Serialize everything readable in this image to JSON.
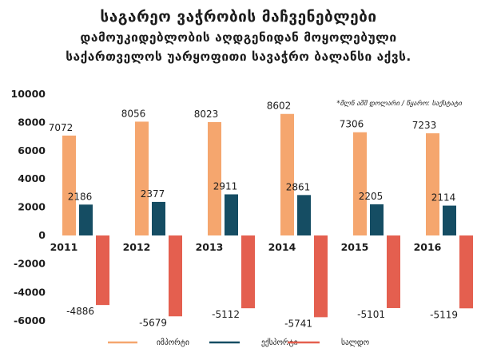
{
  "header": {
    "line1": "საგარეო ვაჭრობის მაჩვენებლები",
    "line2": "დამოუკიდებლობის აღდგენიდან მოყოლებული",
    "line3": "საქართველოს უარყოფითი სავაჭრო ბალანსი აქვს."
  },
  "colors": {
    "import": "#f5a66e",
    "export": "#154d63",
    "balance": "#e45f4f"
  },
  "chart_data": {
    "type": "bar",
    "title": "საგარეო ვაჭრობის მაჩვენებლები",
    "note": "*მლნ აშშ დოლარი / წყარო: საქსტატი",
    "categories": [
      "2011",
      "2012",
      "2013",
      "2014",
      "2015",
      "2016"
    ],
    "series": [
      {
        "name": "იმპორტი",
        "values": [
          7072,
          8056,
          8023,
          8602,
          7306,
          7233
        ]
      },
      {
        "name": "ექსპორტი",
        "values": [
          2186,
          2377,
          2911,
          2861,
          2205,
          2114
        ]
      },
      {
        "name": "სალდო",
        "values": [
          -4886,
          -5679,
          -5112,
          -5741,
          -5101,
          -5119
        ]
      }
    ],
    "yticks": [
      "10000",
      "8000",
      "6000",
      "4000",
      "2000",
      "0",
      "-2000",
      "-4000",
      "-6000"
    ],
    "ylim": [
      -6000,
      10000
    ],
    "grid": false,
    "legend_position": "bottom"
  }
}
